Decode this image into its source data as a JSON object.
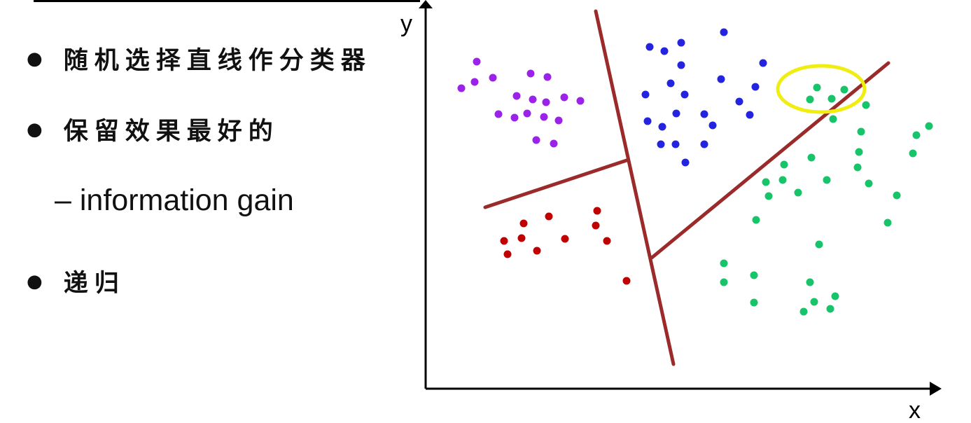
{
  "bullets": [
    {
      "text": "随机选择直线作分类器"
    },
    {
      "text": "保留效果最好的"
    },
    {
      "text": "递归"
    }
  ],
  "sub_bullet": {
    "dash": "–",
    "text": "information gain"
  },
  "axes": {
    "x_label": "x",
    "y_label": "y"
  },
  "colors": {
    "purple": "#9b22e8",
    "blue": "#2323e0",
    "red": "#c00000",
    "green": "#17c46a",
    "split_line": "#9b2a2a",
    "highlight": "#f0ee10",
    "axis": "#000000"
  },
  "chart_data": {
    "type": "scatter",
    "xlabel": "x",
    "ylabel": "y",
    "grid": false,
    "series": [
      {
        "color": "purple",
        "points": [
          [
            681,
            88
          ],
          [
            704,
            111
          ],
          [
            678,
            117
          ],
          [
            659,
            126
          ],
          [
            758,
            105
          ],
          [
            782,
            110
          ],
          [
            738,
            137
          ],
          [
            761,
            142
          ],
          [
            780,
            146
          ],
          [
            806,
            139
          ],
          [
            829,
            144
          ],
          [
            712,
            163
          ],
          [
            735,
            168
          ],
          [
            753,
            162
          ],
          [
            777,
            167
          ],
          [
            798,
            172
          ],
          [
            766,
            200
          ],
          [
            791,
            205
          ]
        ]
      },
      {
        "color": "blue",
        "points": [
          [
            1034,
            46
          ],
          [
            928,
            67
          ],
          [
            949,
            73
          ],
          [
            973,
            61
          ],
          [
            973,
            93
          ],
          [
            1090,
            90
          ],
          [
            958,
            119
          ],
          [
            1030,
            113
          ],
          [
            1079,
            124
          ],
          [
            922,
            135
          ],
          [
            978,
            135
          ],
          [
            1056,
            145
          ],
          [
            1071,
            164
          ],
          [
            966,
            162
          ],
          [
            925,
            173
          ],
          [
            1006,
            163
          ],
          [
            946,
            181
          ],
          [
            1018,
            179
          ],
          [
            944,
            206
          ],
          [
            965,
            206
          ],
          [
            1006,
            206
          ],
          [
            979,
            232
          ]
        ]
      },
      {
        "color": "red",
        "points": [
          [
            853,
            301
          ],
          [
            784,
            309
          ],
          [
            748,
            319
          ],
          [
            851,
            322
          ],
          [
            720,
            344
          ],
          [
            745,
            340
          ],
          [
            807,
            341
          ],
          [
            867,
            344
          ],
          [
            725,
            363
          ],
          [
            767,
            358
          ],
          [
            895,
            401
          ]
        ]
      },
      {
        "color": "green",
        "points": [
          [
            1167,
            125
          ],
          [
            1206,
            128
          ],
          [
            1157,
            142
          ],
          [
            1188,
            141
          ],
          [
            1237,
            150
          ],
          [
            1190,
            170
          ],
          [
            1230,
            188
          ],
          [
            1309,
            193
          ],
          [
            1327,
            180
          ],
          [
            1227,
            217
          ],
          [
            1304,
            219
          ],
          [
            1159,
            225
          ],
          [
            1120,
            235
          ],
          [
            1225,
            239
          ],
          [
            1094,
            260
          ],
          [
            1118,
            257
          ],
          [
            1181,
            257
          ],
          [
            1241,
            262
          ],
          [
            1098,
            280
          ],
          [
            1140,
            275
          ],
          [
            1281,
            279
          ],
          [
            1080,
            314
          ],
          [
            1268,
            318
          ],
          [
            1170,
            349
          ],
          [
            1034,
            376
          ],
          [
            1077,
            393
          ],
          [
            1034,
            403
          ],
          [
            1157,
            403
          ],
          [
            1193,
            423
          ],
          [
            1077,
            432
          ],
          [
            1163,
            431
          ],
          [
            1148,
            445
          ],
          [
            1186,
            441
          ]
        ]
      }
    ],
    "split_lines": [
      {
        "from": [
          851,
          16
        ],
        "to": [
          962,
          520
        ]
      },
      {
        "from": [
          895,
          229
        ],
        "to": [
          693,
          296
        ]
      },
      {
        "from": [
          931,
          368
        ],
        "to": [
          1269,
          90
        ]
      }
    ],
    "highlight": {
      "cx": 1173,
      "cy": 127
    }
  }
}
